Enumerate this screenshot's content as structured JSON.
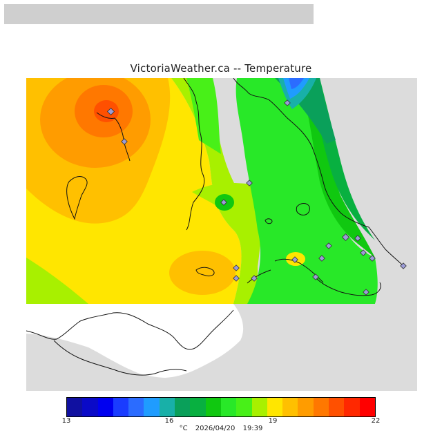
{
  "title": "VictoriaWeather.ca -- Temperature",
  "map": {
    "background_color": "#dcdcdc",
    "land_mask_color": "#ffffff",
    "station_count": 22
  },
  "legend": {
    "min": 13,
    "max": 22,
    "step": 0.5,
    "colors": [
      "#1010a0",
      "#0a0ac8",
      "#0000f0",
      "#1a3cff",
      "#2b6cff",
      "#1f9cff",
      "#18b0a8",
      "#0aa05a",
      "#08b040",
      "#10c810",
      "#28e828",
      "#48f018",
      "#a8f000",
      "#ffe600",
      "#ffc000",
      "#ff9c00",
      "#ff7800",
      "#ff5000",
      "#ff2800",
      "#ff0000"
    ],
    "tick_labels": [
      "13",
      "16",
      "19",
      "22"
    ]
  },
  "footer": {
    "unit": "°C",
    "date": "2026/04/20",
    "time": "19:39"
  }
}
